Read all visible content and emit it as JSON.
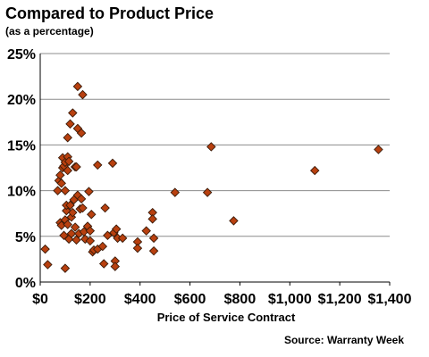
{
  "chart_data": {
    "type": "scatter",
    "title": "Compared to Product Price",
    "subtitle": "(as a percentage)",
    "xlabel": "Price of Service Contract",
    "ylabel": "",
    "source": "Source: Warranty Week",
    "xlim": [
      0,
      1400
    ],
    "ylim": [
      0,
      25
    ],
    "xticks": [
      0,
      200,
      400,
      600,
      800,
      1000,
      1200,
      1400
    ],
    "xtick_labels": [
      "$0",
      "$200",
      "$400",
      "$600",
      "$800",
      "$1,000",
      "$1,200",
      "$1,400"
    ],
    "yticks": [
      0,
      5,
      10,
      15,
      20,
      25
    ],
    "ytick_labels": [
      "0%",
      "5%",
      "10%",
      "15%",
      "20%",
      "25%"
    ],
    "grid": "horizontal",
    "marker": "diamond",
    "marker_color": "#B8400F",
    "marker_edge_color": "#3A1A08",
    "points": [
      [
        20,
        3.6
      ],
      [
        30,
        1.9
      ],
      [
        70,
        10.0
      ],
      [
        75,
        11.1
      ],
      [
        80,
        6.5
      ],
      [
        80,
        11.7
      ],
      [
        85,
        10.8
      ],
      [
        85,
        6.2
      ],
      [
        90,
        12.5
      ],
      [
        90,
        13.6
      ],
      [
        95,
        12.7
      ],
      [
        95,
        5.1
      ],
      [
        100,
        10.0
      ],
      [
        100,
        13.1
      ],
      [
        100,
        6.8
      ],
      [
        100,
        1.5
      ],
      [
        105,
        7.8
      ],
      [
        105,
        8.4
      ],
      [
        110,
        15.8
      ],
      [
        110,
        13.7
      ],
      [
        110,
        12.2
      ],
      [
        110,
        6.3
      ],
      [
        115,
        13.2
      ],
      [
        115,
        4.7
      ],
      [
        120,
        17.3
      ],
      [
        120,
        8.4
      ],
      [
        125,
        7.1
      ],
      [
        125,
        5.3
      ],
      [
        130,
        18.5
      ],
      [
        130,
        7.6
      ],
      [
        135,
        9.0
      ],
      [
        140,
        12.6
      ],
      [
        140,
        6.0
      ],
      [
        145,
        12.6
      ],
      [
        145,
        4.6
      ],
      [
        150,
        21.4
      ],
      [
        150,
        16.8
      ],
      [
        150,
        9.5
      ],
      [
        155,
        5.3
      ],
      [
        160,
        8.0
      ],
      [
        165,
        16.3
      ],
      [
        165,
        9.1
      ],
      [
        170,
        20.5
      ],
      [
        170,
        8.1
      ],
      [
        175,
        5.5
      ],
      [
        180,
        4.7
      ],
      [
        190,
        6.1
      ],
      [
        195,
        9.9
      ],
      [
        200,
        5.6
      ],
      [
        200,
        4.5
      ],
      [
        205,
        7.4
      ],
      [
        210,
        3.3
      ],
      [
        215,
        3.5
      ],
      [
        230,
        12.8
      ],
      [
        230,
        3.6
      ],
      [
        250,
        3.9
      ],
      [
        255,
        2.0
      ],
      [
        260,
        8.1
      ],
      [
        270,
        5.1
      ],
      [
        290,
        13.0
      ],
      [
        295,
        5.4
      ],
      [
        300,
        2.3
      ],
      [
        300,
        1.7
      ],
      [
        305,
        5.8
      ],
      [
        310,
        4.8
      ],
      [
        330,
        4.8
      ],
      [
        390,
        4.4
      ],
      [
        390,
        3.7
      ],
      [
        425,
        5.6
      ],
      [
        450,
        7.6
      ],
      [
        450,
        6.9
      ],
      [
        455,
        4.8
      ],
      [
        455,
        3.4
      ],
      [
        540,
        9.8
      ],
      [
        670,
        9.8
      ],
      [
        685,
        14.8
      ],
      [
        775,
        6.7
      ],
      [
        1100,
        12.2
      ],
      [
        1355,
        14.5
      ]
    ]
  }
}
